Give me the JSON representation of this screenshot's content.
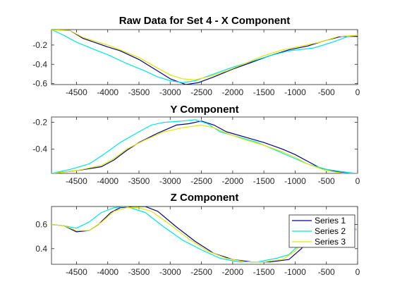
{
  "chart_data": [
    {
      "type": "line",
      "title": "Raw Data for Set 4 - X Component",
      "xlim": [
        -4900,
        0
      ],
      "ylim": [
        -0.61,
        -0.04
      ],
      "xticks": [
        -4500,
        -4000,
        -3500,
        -3000,
        -2500,
        -2000,
        -1500,
        -1000,
        -500,
        0
      ],
      "yticks": [
        -0.6,
        -0.4,
        -0.2
      ],
      "xticklabels": [
        "-4500",
        "-4000",
        "-3500",
        "-3000",
        "-2500",
        "-2000",
        "-1500",
        "-1000",
        "-500",
        "0"
      ],
      "yticklabels": [
        "-0.6",
        "-0.4",
        "-0.2"
      ],
      "grid": false,
      "series": [
        {
          "name": "Series 1",
          "color": "#00008b",
          "points": [
            [
              -4900,
              -0.04
            ],
            [
              -4600,
              -0.05
            ],
            [
              -4400,
              -0.13
            ],
            [
              -4000,
              -0.22
            ],
            [
              -3800,
              -0.26
            ],
            [
              -3500,
              -0.35
            ],
            [
              -3200,
              -0.47
            ],
            [
              -3000,
              -0.55
            ],
            [
              -2750,
              -0.61
            ],
            [
              -2550,
              -0.59
            ],
            [
              -2300,
              -0.53
            ],
            [
              -2000,
              -0.45
            ],
            [
              -1700,
              -0.38
            ],
            [
              -1400,
              -0.31
            ],
            [
              -1100,
              -0.25
            ],
            [
              -800,
              -0.21
            ],
            [
              -500,
              -0.15
            ],
            [
              -250,
              -0.11
            ],
            [
              0,
              -0.11
            ]
          ]
        },
        {
          "name": "Series 2",
          "color": "#00e5e5",
          "points": [
            [
              -4900,
              -0.04
            ],
            [
              -4700,
              -0.1
            ],
            [
              -4500,
              -0.17
            ],
            [
              -4200,
              -0.25
            ],
            [
              -4000,
              -0.3
            ],
            [
              -3700,
              -0.39
            ],
            [
              -3400,
              -0.47
            ],
            [
              -3200,
              -0.53
            ],
            [
              -3000,
              -0.57
            ],
            [
              -2800,
              -0.59
            ],
            [
              -2600,
              -0.57
            ],
            [
              -2300,
              -0.5
            ],
            [
              -2000,
              -0.43
            ],
            [
              -1700,
              -0.37
            ],
            [
              -1400,
              -0.31
            ],
            [
              -1100,
              -0.26
            ],
            [
              -700,
              -0.23
            ],
            [
              -400,
              -0.17
            ],
            [
              -150,
              -0.11
            ],
            [
              0,
              -0.1
            ]
          ]
        },
        {
          "name": "Series 3",
          "color": "#e5e500",
          "points": [
            [
              -4900,
              -0.04
            ],
            [
              -4600,
              -0.05
            ],
            [
              -4400,
              -0.12
            ],
            [
              -4000,
              -0.2
            ],
            [
              -3800,
              -0.25
            ],
            [
              -3500,
              -0.33
            ],
            [
              -3200,
              -0.44
            ],
            [
              -3000,
              -0.51
            ],
            [
              -2800,
              -0.55
            ],
            [
              -2600,
              -0.56
            ],
            [
              -2400,
              -0.53
            ],
            [
              -2100,
              -0.47
            ],
            [
              -1800,
              -0.39
            ],
            [
              -1500,
              -0.31
            ],
            [
              -1200,
              -0.25
            ],
            [
              -900,
              -0.21
            ],
            [
              -600,
              -0.17
            ],
            [
              -300,
              -0.11
            ],
            [
              0,
              -0.1
            ]
          ]
        }
      ]
    },
    {
      "type": "line",
      "title": "Y Component",
      "xlim": [
        -4900,
        0
      ],
      "ylim": [
        -0.58,
        -0.16
      ],
      "xticks": [
        -4500,
        -4000,
        -3500,
        -3000,
        -2500,
        -2000,
        -1500,
        -1000,
        -500,
        0
      ],
      "yticks": [
        -0.4,
        -0.2
      ],
      "xticklabels": [
        "-4500",
        "-4000",
        "-3500",
        "-3000",
        "-2500",
        "-2000",
        "-1500",
        "-1000",
        "-500",
        "0"
      ],
      "yticklabels": [
        "-0.4",
        "-0.2"
      ],
      "grid": false,
      "series": [
        {
          "name": "Series 1",
          "color": "#00008b",
          "points": [
            [
              -4900,
              -0.58
            ],
            [
              -4500,
              -0.56
            ],
            [
              -4100,
              -0.53
            ],
            [
              -3900,
              -0.48
            ],
            [
              -3700,
              -0.41
            ],
            [
              -3500,
              -0.35
            ],
            [
              -3200,
              -0.28
            ],
            [
              -2900,
              -0.22
            ],
            [
              -2700,
              -0.21
            ],
            [
              -2500,
              -0.19
            ],
            [
              -2300,
              -0.22
            ],
            [
              -2100,
              -0.27
            ],
            [
              -1800,
              -0.31
            ],
            [
              -1500,
              -0.35
            ],
            [
              -1200,
              -0.4
            ],
            [
              -1000,
              -0.44
            ],
            [
              -800,
              -0.49
            ],
            [
              -600,
              -0.54
            ],
            [
              -300,
              -0.57
            ],
            [
              0,
              -0.58
            ]
          ]
        },
        {
          "name": "Series 2",
          "color": "#00e5e5",
          "points": [
            [
              -4900,
              -0.58
            ],
            [
              -4600,
              -0.55
            ],
            [
              -4300,
              -0.51
            ],
            [
              -4100,
              -0.45
            ],
            [
              -3800,
              -0.35
            ],
            [
              -3500,
              -0.27
            ],
            [
              -3300,
              -0.22
            ],
            [
              -3100,
              -0.2
            ],
            [
              -2800,
              -0.19
            ],
            [
              -2600,
              -0.18
            ],
            [
              -2400,
              -0.21
            ],
            [
              -2200,
              -0.27
            ],
            [
              -1900,
              -0.31
            ],
            [
              -1600,
              -0.35
            ],
            [
              -1300,
              -0.41
            ],
            [
              -1000,
              -0.47
            ],
            [
              -800,
              -0.51
            ],
            [
              -500,
              -0.55
            ],
            [
              -200,
              -0.57
            ],
            [
              0,
              -0.58
            ]
          ]
        },
        {
          "name": "Series 3",
          "color": "#e5e500",
          "points": [
            [
              -4900,
              -0.58
            ],
            [
              -4500,
              -0.56
            ],
            [
              -4100,
              -0.52
            ],
            [
              -3900,
              -0.47
            ],
            [
              -3700,
              -0.4
            ],
            [
              -3400,
              -0.33
            ],
            [
              -3100,
              -0.27
            ],
            [
              -2800,
              -0.24
            ],
            [
              -2500,
              -0.22
            ],
            [
              -2300,
              -0.24
            ],
            [
              -2100,
              -0.28
            ],
            [
              -1800,
              -0.33
            ],
            [
              -1500,
              -0.37
            ],
            [
              -1200,
              -0.42
            ],
            [
              -1000,
              -0.46
            ],
            [
              -800,
              -0.51
            ],
            [
              -500,
              -0.56
            ],
            [
              -200,
              -0.58
            ],
            [
              0,
              -0.58
            ]
          ]
        }
      ]
    },
    {
      "type": "line",
      "title": "Z Component",
      "xlim": [
        -4900,
        0
      ],
      "ylim": [
        0.27,
        0.75
      ],
      "xticks": [
        -4500,
        -4000,
        -3500,
        -3000,
        -2500,
        -2000,
        -1500,
        -1000,
        -500,
        0
      ],
      "yticks": [
        0.4,
        0.6
      ],
      "xticklabels": [
        "-4500",
        "-4000",
        "-3500",
        "-3000",
        "-2500",
        "-2000",
        "-1500",
        "-1000",
        "-500",
        "0"
      ],
      "yticklabels": [
        "0.4",
        "0.6"
      ],
      "grid": false,
      "legend": {
        "location": "top-right",
        "entries": [
          "Series 1",
          "Series 2",
          "Series 3"
        ]
      },
      "series": [
        {
          "name": "Series 1",
          "color": "#00008b",
          "points": [
            [
              -4900,
              0.6
            ],
            [
              -4700,
              0.59
            ],
            [
              -4500,
              0.54
            ],
            [
              -4300,
              0.55
            ],
            [
              -4150,
              0.6
            ],
            [
              -3950,
              0.7
            ],
            [
              -3800,
              0.74
            ],
            [
              -3600,
              0.75
            ],
            [
              -3400,
              0.75
            ],
            [
              -3200,
              0.71
            ],
            [
              -2900,
              0.58
            ],
            [
              -2600,
              0.46
            ],
            [
              -2300,
              0.36
            ],
            [
              -2000,
              0.31
            ],
            [
              -1700,
              0.29
            ],
            [
              -1400,
              0.29
            ],
            [
              -1100,
              0.31
            ],
            [
              -900,
              0.4
            ],
            [
              -700,
              0.53
            ],
            [
              -500,
              0.56
            ],
            [
              0,
              0.56
            ]
          ]
        },
        {
          "name": "Series 2",
          "color": "#00e5e5",
          "points": [
            [
              -4900,
              0.6
            ],
            [
              -4700,
              0.59
            ],
            [
              -4500,
              0.57
            ],
            [
              -4300,
              0.62
            ],
            [
              -4100,
              0.7
            ],
            [
              -3900,
              0.74
            ],
            [
              -3700,
              0.75
            ],
            [
              -3400,
              0.7
            ],
            [
              -3100,
              0.58
            ],
            [
              -2800,
              0.47
            ],
            [
              -2500,
              0.39
            ],
            [
              -2200,
              0.32
            ],
            [
              -1900,
              0.29
            ],
            [
              -1600,
              0.29
            ],
            [
              -1300,
              0.32
            ],
            [
              -1100,
              0.35
            ],
            [
              -900,
              0.45
            ],
            [
              -700,
              0.54
            ],
            [
              -500,
              0.56
            ],
            [
              0,
              0.56
            ]
          ]
        },
        {
          "name": "Series 3",
          "color": "#e5e500",
          "points": [
            [
              -4900,
              0.6
            ],
            [
              -4700,
              0.59
            ],
            [
              -4500,
              0.55
            ],
            [
              -4300,
              0.55
            ],
            [
              -4100,
              0.62
            ],
            [
              -3900,
              0.71
            ],
            [
              -3700,
              0.74
            ],
            [
              -3500,
              0.74
            ],
            [
              -3300,
              0.71
            ],
            [
              -3000,
              0.6
            ],
            [
              -2700,
              0.48
            ],
            [
              -2400,
              0.38
            ],
            [
              -2100,
              0.32
            ],
            [
              -1800,
              0.29
            ],
            [
              -1500,
              0.29
            ],
            [
              -1200,
              0.31
            ],
            [
              -1000,
              0.38
            ],
            [
              -800,
              0.5
            ],
            [
              -600,
              0.55
            ],
            [
              0,
              0.56
            ]
          ]
        }
      ]
    }
  ]
}
